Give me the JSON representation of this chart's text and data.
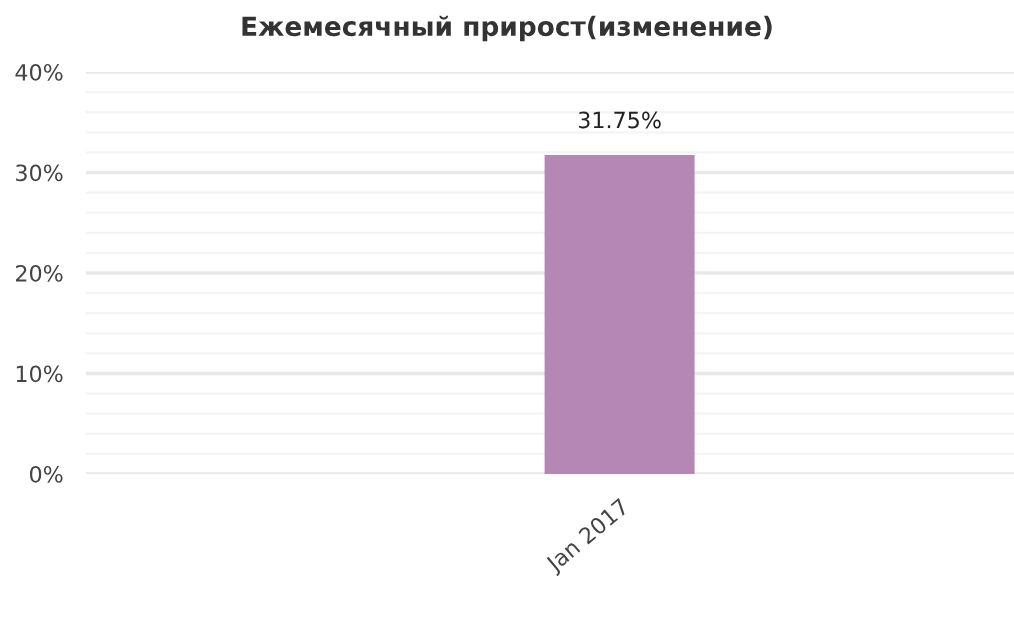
{
  "chart_data": {
    "type": "bar",
    "title": "Ежемесячный прирост(изменение)",
    "categories": [
      "Jan 2017"
    ],
    "values": [
      31.75
    ],
    "value_labels": [
      "31.75%"
    ],
    "color": "#b587b5",
    "ylim": [
      0,
      40
    ],
    "yticks": [
      {
        "value": 0,
        "label": "0%"
      },
      {
        "value": 10,
        "label": "10%"
      },
      {
        "value": 20,
        "label": "20%"
      },
      {
        "value": 30,
        "label": "30%"
      },
      {
        "value": 40,
        "label": "40%"
      }
    ],
    "grid": "y",
    "legend": false
  }
}
